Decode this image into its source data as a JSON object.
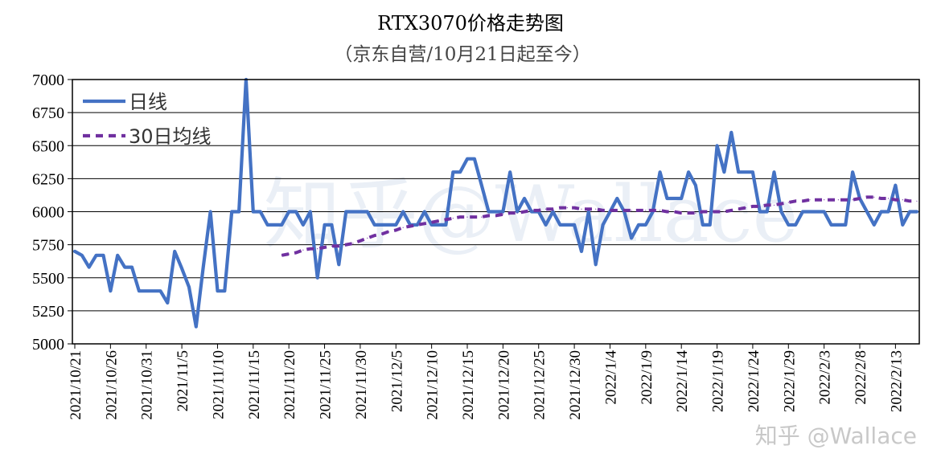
{
  "chart_data": {
    "type": "line",
    "title": "RTX3070价格走势图",
    "subtitle": "（京东自营/10月21日起至今）",
    "ylim": [
      5000,
      7000
    ],
    "yticks": [
      5000,
      5250,
      5500,
      5750,
      6000,
      6250,
      6500,
      6750,
      7000
    ],
    "start_date": "2021-10-21",
    "x_tick_labels": [
      "2021/10/21",
      "2021/10/26",
      "2021/10/31",
      "2021/11/5",
      "2021/11/10",
      "2021/11/15",
      "2021/11/20",
      "2021/11/25",
      "2021/11/30",
      "2021/12/5",
      "2021/12/10",
      "2021/12/15",
      "2021/12/20",
      "2021/12/25",
      "2021/12/30",
      "2022/1/4",
      "2022/1/9",
      "2022/1/14",
      "2022/1/19",
      "2022/1/24",
      "2022/1/29",
      "2022/2/3",
      "2022/2/8",
      "2022/2/13"
    ],
    "legend_position": "top-left",
    "grid": "horizontal",
    "series": [
      {
        "name": "日线",
        "color": "#4472c4",
        "style": "solid",
        "values": [
          5700,
          5670,
          5580,
          5670,
          5670,
          5400,
          5670,
          5580,
          5580,
          5400,
          5400,
          5400,
          5400,
          5310,
          5700,
          5570,
          5430,
          5130,
          5580,
          6000,
          5400,
          5400,
          6000,
          6000,
          7000,
          6000,
          6000,
          5900,
          5900,
          5900,
          6000,
          6000,
          5900,
          6000,
          5500,
          5900,
          5900,
          5600,
          6000,
          6000,
          6000,
          6000,
          5900,
          5900,
          5900,
          5900,
          6000,
          5900,
          5900,
          6000,
          5900,
          5900,
          5900,
          6300,
          6300,
          6400,
          6400,
          6200,
          6000,
          6000,
          6000,
          6300,
          6000,
          6100,
          6000,
          6000,
          5900,
          6000,
          5900,
          5900,
          5900,
          5700,
          6000,
          5600,
          5900,
          6000,
          6100,
          6000,
          5800,
          5900,
          5900,
          6000,
          6300,
          6100,
          6100,
          6100,
          6300,
          6200,
          5900,
          5900,
          6500,
          6300,
          6600,
          6300,
          6300,
          6300,
          6000,
          6000,
          6300,
          6000,
          5900,
          5900,
          6000,
          6000,
          6000,
          6000,
          5900,
          5900,
          5900,
          6300,
          6100,
          6000,
          5900,
          6000,
          6000,
          6200,
          5900,
          6000,
          6000
        ]
      },
      {
        "name": "30日均线",
        "color": "#7030a0",
        "style": "dashed",
        "start_index": 29,
        "values": [
          5670,
          5680,
          5690,
          5710,
          5720,
          5720,
          5730,
          5740,
          5740,
          5750,
          5760,
          5780,
          5800,
          5820,
          5830,
          5850,
          5860,
          5880,
          5890,
          5900,
          5910,
          5920,
          5930,
          5940,
          5950,
          5960,
          5960,
          5960,
          5960,
          5970,
          5970,
          5980,
          5990,
          5990,
          6000,
          6010,
          6010,
          6020,
          6020,
          6030,
          6030,
          6030,
          6020,
          6020,
          6020,
          6010,
          6010,
          6010,
          6010,
          6010,
          6010,
          6010,
          6010,
          6010,
          6000,
          6000,
          5990,
          5990,
          5990,
          6000,
          6000,
          6000,
          6000,
          6010,
          6020,
          6030,
          6040,
          6040,
          6050,
          6050,
          6060,
          6070,
          6080,
          6080,
          6090,
          6090,
          6090,
          6090,
          6090,
          6090,
          6090,
          6100,
          6110,
          6110,
          6100,
          6100,
          6090,
          6090,
          6080,
          6080
        ]
      }
    ]
  },
  "watermark": {
    "center": "知乎@Wallace",
    "corner": "知乎 @Wallace"
  }
}
